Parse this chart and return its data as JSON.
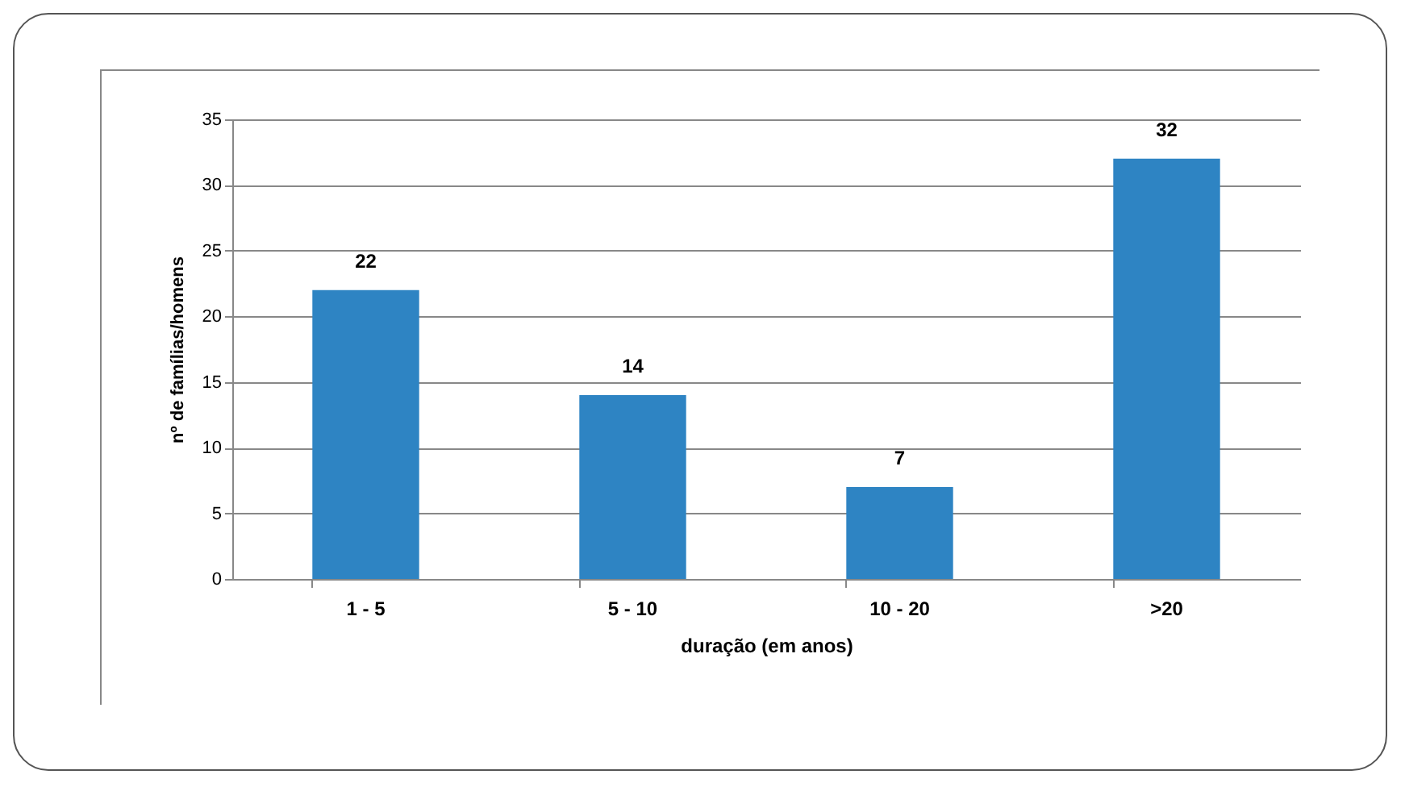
{
  "chart_data": {
    "type": "bar",
    "xlabel": "duração (em anos)",
    "ylabel": "nº de famílias/homens",
    "categories": [
      "1 - 5",
      "5 - 10",
      "10 - 20",
      ">20"
    ],
    "values": [
      22,
      14,
      7,
      32
    ],
    "color": "#2e84c3",
    "ylim": [
      0,
      35
    ],
    "yticks": [
      0,
      5,
      10,
      15,
      20,
      25,
      30,
      35
    ],
    "grid": "y",
    "data_labels": true
  }
}
